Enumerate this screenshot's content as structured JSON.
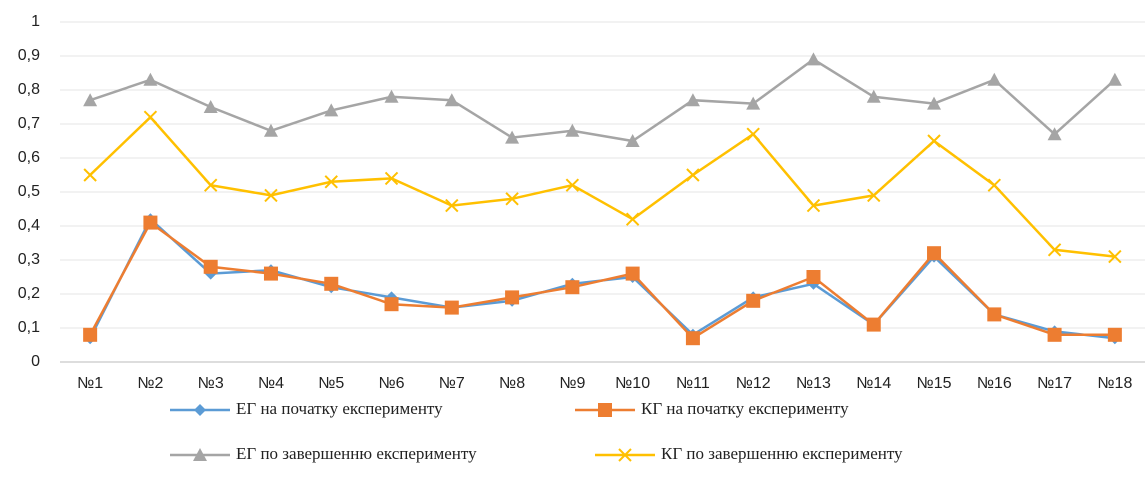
{
  "chart_data": {
    "type": "line",
    "categories": [
      "№1",
      "№2",
      "№3",
      "№4",
      "№5",
      "№6",
      "№7",
      "№8",
      "№9",
      "№10",
      "№11",
      "№12",
      "№13",
      "№14",
      "№15",
      "№16",
      "№17",
      "№18"
    ],
    "ylim": [
      0,
      1
    ],
    "yticks": [
      0,
      {
        "value": 0.1,
        "label": "0,1"
      },
      {
        "value": 0.2,
        "label": "0,2"
      },
      {
        "value": 0.3,
        "label": "0,3"
      },
      {
        "value": 0.4,
        "label": "0,4"
      },
      {
        "value": 0.5,
        "label": "0,5"
      },
      {
        "value": 0.6,
        "label": "0,6"
      },
      {
        "value": 0.7,
        "label": "0,7"
      },
      {
        "value": 0.8,
        "label": "0,8"
      },
      {
        "value": 0.9,
        "label": "0,9"
      },
      1
    ],
    "grid": true,
    "series": [
      {
        "name": "ЕГ на початку експерименту",
        "color": "#5b9bd5",
        "marker": "diamond",
        "values": [
          0.07,
          0.42,
          0.26,
          0.27,
          0.22,
          0.19,
          0.16,
          0.18,
          0.23,
          0.25,
          0.08,
          0.19,
          0.23,
          0.11,
          0.31,
          0.14,
          0.09,
          0.07
        ]
      },
      {
        "name": "КГ на початку експерименту",
        "color": "#ed7d31",
        "marker": "square",
        "values": [
          0.08,
          0.41,
          0.28,
          0.26,
          0.23,
          0.17,
          0.16,
          0.19,
          0.22,
          0.26,
          0.07,
          0.18,
          0.25,
          0.11,
          0.32,
          0.14,
          0.08,
          0.08
        ]
      },
      {
        "name": "ЕГ по завершенню експерименту",
        "color": "#a5a5a5",
        "marker": "triangle",
        "values": [
          0.77,
          0.83,
          0.75,
          0.68,
          0.74,
          0.78,
          0.77,
          0.66,
          0.68,
          0.65,
          0.77,
          0.76,
          0.89,
          0.78,
          0.76,
          0.83,
          0.67,
          0.83
        ]
      },
      {
        "name": "КГ по завершенню експерименту",
        "color": "#ffc000",
        "marker": "x",
        "values": [
          0.55,
          0.72,
          0.52,
          0.49,
          0.53,
          0.54,
          0.46,
          0.48,
          0.52,
          0.42,
          0.55,
          0.67,
          0.46,
          0.49,
          0.65,
          0.52,
          0.33,
          0.31
        ]
      }
    ]
  }
}
